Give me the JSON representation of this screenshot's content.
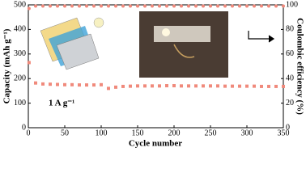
{
  "chart_data": {
    "type": "scatter",
    "xlabel": "Cycle number",
    "ylabel": "Capacity (mAh g⁻¹)",
    "y2label": "Coulombic efficiency (%)",
    "annotation": "1 A g⁻¹",
    "x": [
      1,
      10,
      20,
      30,
      40,
      50,
      60,
      70,
      80,
      90,
      100,
      110,
      120,
      130,
      140,
      150,
      160,
      170,
      180,
      190,
      200,
      210,
      220,
      230,
      240,
      250,
      260,
      270,
      280,
      290,
      300,
      310,
      320,
      330,
      340,
      350
    ],
    "series": [
      {
        "name": "Capacity",
        "color": "#f08a7c",
        "marker": "square",
        "values": [
          265,
          182,
          178,
          177,
          176,
          175,
          175,
          174,
          174,
          174,
          175,
          160,
          165,
          168,
          169,
          170,
          170,
          170,
          170,
          171,
          171,
          170,
          170,
          170,
          170,
          170,
          170,
          169,
          169,
          169,
          169,
          169,
          168,
          168,
          168,
          168
        ]
      },
      {
        "name": "Coulombic efficiency",
        "color": "#f08a7c",
        "marker": "circle",
        "axis": "y2",
        "values": [
          97,
          99,
          99,
          99,
          99,
          99,
          99,
          99,
          99,
          99,
          99,
          99,
          99,
          99,
          99,
          99,
          99,
          99,
          99,
          99,
          99,
          99,
          99,
          99,
          99,
          99,
          99,
          99,
          99,
          99,
          99,
          99,
          99,
          99,
          99,
          99
        ]
      }
    ],
    "xlim": [
      0,
      350
    ],
    "xticks": [
      0,
      50,
      100,
      150,
      200,
      250,
      300,
      350
    ],
    "ylim": [
      0,
      500
    ],
    "yticks": [
      0,
      100,
      200,
      300,
      400,
      500
    ],
    "y2lim": [
      0,
      100
    ],
    "y2ticks": [
      0,
      20,
      40,
      60,
      80,
      100
    ]
  }
}
